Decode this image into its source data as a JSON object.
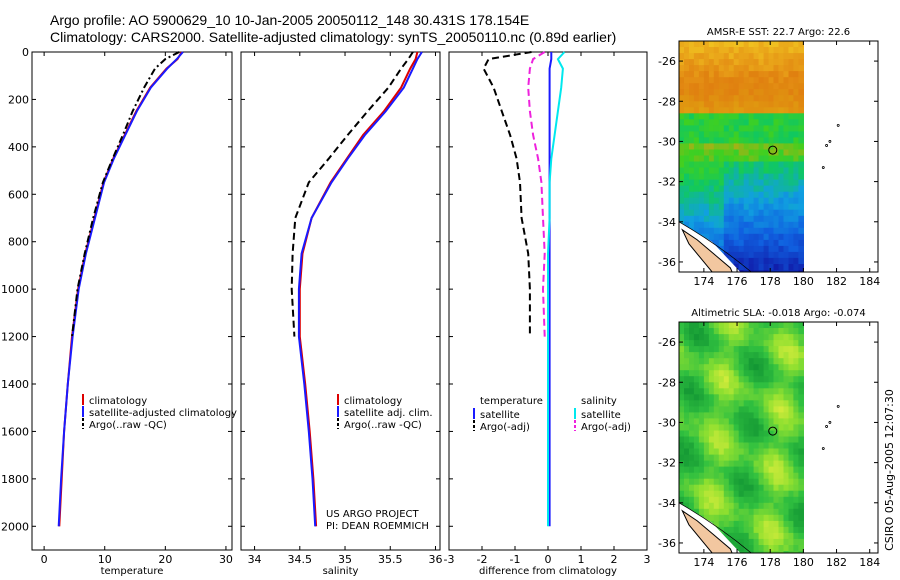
{
  "title_line1": "Argo profile: AO 5900629_10 10-Jan-2005 20050112_148 30.431S 178.154E",
  "title_line2": "Climatology: CARS2000. Satellite-adjusted climatology: synTS_20050110.nc (0.89d earlier)",
  "side_label": "CSIRO 05-Aug-2005 12:07:30",
  "colors": {
    "red": "#dd0000",
    "blue": "#1a1aff",
    "black": "#000000",
    "cyan": "#00e8ee",
    "magenta": "#ee22dd"
  },
  "chart_data": [
    {
      "type": "line",
      "name": "temperature profile",
      "xlabel": "temperature",
      "ylabel": "",
      "xlim": [
        -2,
        31
      ],
      "ylim": [
        2100,
        0
      ],
      "xticks": [
        "0",
        "10",
        "20",
        "30"
      ],
      "yticks": [
        "0",
        "200",
        "400",
        "600",
        "800",
        "1000",
        "1200",
        "1400",
        "1600",
        "1800",
        "2000"
      ],
      "legend": [
        "climatology",
        "satellite-adjusted climatology",
        "Argo(..raw -QC)"
      ],
      "legend_position": "lower-right",
      "series": [
        {
          "name": "climatology",
          "color": "red",
          "dash": "solid",
          "x": [
            22.7,
            22,
            20.2,
            17.5,
            15.2,
            13.3,
            11.4,
            9.8,
            8.3,
            6.8,
            5.6,
            4.6,
            3.9,
            3.3,
            2.9,
            2.5
          ],
          "y": [
            0,
            30,
            70,
            150,
            250,
            350,
            450,
            550,
            700,
            850,
            1000,
            1200,
            1400,
            1600,
            1800,
            2000
          ]
        },
        {
          "name": "satellite-adjusted climatology",
          "color": "blue",
          "dash": "solid",
          "x": [
            22.9,
            21.9,
            20.3,
            17.6,
            15.3,
            13.4,
            11.5,
            9.9,
            8.4,
            6.9,
            5.7,
            4.7,
            3.9,
            3.3,
            2.8,
            2.4
          ],
          "y": [
            0,
            30,
            70,
            150,
            250,
            350,
            450,
            550,
            700,
            850,
            1000,
            1200,
            1400,
            1600,
            1800,
            2000
          ]
        },
        {
          "name": "Argo(..raw -QC)",
          "color": "black",
          "dash": "dashdot",
          "x": [
            22.3,
            20,
            18.3,
            16.5,
            14.6,
            13,
            11.3,
            9.7,
            8.1,
            6.7,
            5.5,
            4.6
          ],
          "y": [
            0,
            30,
            70,
            150,
            250,
            350,
            450,
            550,
            700,
            850,
            1000,
            1200
          ]
        }
      ]
    },
    {
      "type": "line",
      "name": "salinity profile",
      "xlabel": "salinity",
      "ylabel": "",
      "xlim": [
        33.85,
        36.05
      ],
      "ylim": [
        2100,
        0
      ],
      "xticks": [
        "34",
        "34.5",
        "35",
        "35.5",
        "36"
      ],
      "legend": [
        "climatology",
        "satellite adj. clim.",
        "Argo(..raw -QC)"
      ],
      "legend_position": "lower-right",
      "annotation": [
        "US ARGO PROJECT",
        "PI: DEAN ROEMMICH"
      ],
      "series": [
        {
          "name": "climatology",
          "color": "red",
          "dash": "solid",
          "x": [
            35.8,
            35.78,
            35.72,
            35.62,
            35.43,
            35.2,
            35.02,
            34.84,
            34.63,
            34.53,
            34.5,
            34.5,
            34.56,
            34.61,
            34.65,
            34.68
          ],
          "y": [
            0,
            30,
            70,
            150,
            250,
            350,
            450,
            550,
            700,
            850,
            1000,
            1200,
            1400,
            1600,
            1800,
            2000
          ]
        },
        {
          "name": "satellite adj. clim.",
          "color": "blue",
          "dash": "solid",
          "x": [
            35.85,
            35.8,
            35.75,
            35.65,
            35.45,
            35.22,
            35.03,
            34.85,
            34.63,
            34.52,
            34.49,
            34.49,
            34.55,
            34.6,
            34.64,
            34.67
          ],
          "y": [
            0,
            30,
            70,
            150,
            250,
            350,
            450,
            550,
            700,
            850,
            1000,
            1200,
            1400,
            1600,
            1800,
            2000
          ]
        },
        {
          "name": "Argo(..raw -QC)",
          "color": "black",
          "dash": "dashed",
          "x": [
            35.75,
            35.7,
            35.62,
            35.48,
            35.25,
            35.03,
            34.82,
            34.6,
            34.45,
            34.42,
            34.41,
            34.44
          ],
          "y": [
            0,
            30,
            70,
            150,
            250,
            350,
            450,
            550,
            700,
            850,
            1000,
            1200
          ]
        }
      ]
    },
    {
      "type": "line",
      "name": "difference from climatology",
      "xlabel": "difference from climatology",
      "ylabel": "",
      "xlim": [
        -3,
        3
      ],
      "ylim": [
        2100,
        0
      ],
      "xticks": [
        "-3",
        "-2",
        "-1",
        "0",
        "1",
        "2",
        "3"
      ],
      "legend_left": [
        "temperature",
        "satellite",
        "Argo(-adj)"
      ],
      "legend_right": [
        "salinity",
        "satellite",
        "Argo(-adj)"
      ],
      "legend_position": "middle",
      "series": [
        {
          "name": "temperature satellite",
          "color": "blue",
          "dash": "solid",
          "x": [
            0.1,
            0.1,
            0.05,
            0.05,
            0.05,
            0.05,
            0.05,
            0.05,
            0.05,
            0.05,
            0.05,
            0.05,
            0.05,
            0.05,
            0.05,
            0.05
          ],
          "y": [
            0,
            30,
            70,
            150,
            250,
            350,
            450,
            550,
            700,
            850,
            1000,
            1200,
            1400,
            1600,
            1800,
            2000
          ]
        },
        {
          "name": "temperature Argo(-adj)",
          "color": "black",
          "dash": "dashed",
          "x": [
            -0.5,
            -1.8,
            -1.95,
            -1.65,
            -1.4,
            -1.15,
            -0.95,
            -0.85,
            -0.8,
            -0.6,
            -0.55,
            -0.55
          ],
          "y": [
            0,
            30,
            70,
            150,
            250,
            350,
            450,
            550,
            700,
            850,
            1000,
            1200
          ]
        },
        {
          "name": "salinity satellite",
          "color": "cyan",
          "dash": "solid",
          "x": [
            0.5,
            0.3,
            0.45,
            0.4,
            0.3,
            0.2,
            0.1,
            0.05,
            0.05,
            0.0,
            0.0,
            0.0,
            0.0,
            0.0,
            0.0,
            0.0
          ],
          "y": [
            0,
            30,
            70,
            150,
            250,
            350,
            450,
            550,
            700,
            850,
            1000,
            1200,
            1400,
            1600,
            1800,
            2000
          ]
        },
        {
          "name": "salinity Argo(-adj)",
          "color": "magenta",
          "dash": "dashed",
          "x": [
            -0.1,
            -0.45,
            -0.55,
            -0.6,
            -0.55,
            -0.45,
            -0.3,
            -0.2,
            -0.15,
            -0.1,
            -0.15,
            -0.1
          ],
          "y": [
            0,
            30,
            70,
            150,
            250,
            350,
            450,
            550,
            700,
            850,
            1000,
            1200
          ]
        }
      ]
    },
    {
      "type": "heatmap",
      "name": "sst map",
      "title": "AMSR-E SST: 22.7 Argo: 22.6",
      "xlim": [
        172.5,
        184.5
      ],
      "ylim": [
        -36.5,
        -25
      ],
      "xticks": [
        "174",
        "176",
        "178",
        "180",
        "182",
        "184"
      ],
      "yticks": [
        "-26",
        "-28",
        "-30",
        "-32",
        "-34",
        "-36"
      ],
      "float_position": [
        178.154,
        -30.431
      ],
      "data_extent_east": 180
    },
    {
      "type": "heatmap",
      "name": "sla map",
      "title": "Altimetric SLA: -0.018 Argo: -0.074",
      "xlim": [
        172.5,
        184.5
      ],
      "ylim": [
        -36.5,
        -25
      ],
      "xticks": [
        "174",
        "176",
        "178",
        "180",
        "182",
        "184"
      ],
      "yticks": [
        "-26",
        "-28",
        "-30",
        "-32",
        "-34",
        "-36"
      ],
      "float_position": [
        178.154,
        -30.431
      ],
      "data_extent_east": 180
    }
  ]
}
